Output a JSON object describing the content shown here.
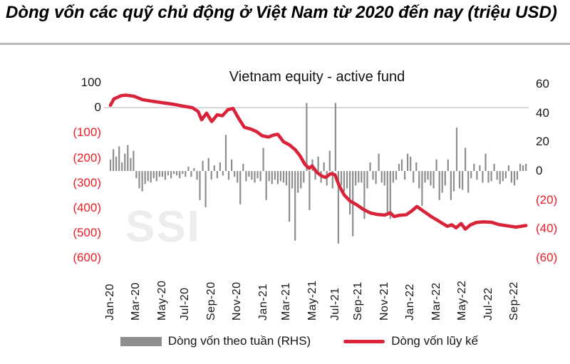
{
  "page": {
    "title": "Dòng vốn các quỹ chủ động ở Việt Nam từ 2020 đến nay (triệu USD)"
  },
  "chart": {
    "title": "Vietnam equity - active fund",
    "watermark": "SSI",
    "colors": {
      "bar": "#8e8e8e",
      "line": "#d92339",
      "negative_label": "#ee1c25",
      "positive_label": "#161616",
      "gridline": "#c6c6c6",
      "separator": "#b9b9b9"
    },
    "legend": [
      {
        "label": "Dòng vốn theo tuần (RHS)",
        "swatch": "bar"
      },
      {
        "label": "Dòng vốn lũy kế",
        "swatch": "line"
      }
    ]
  },
  "chart_data": {
    "type": "combo-bar-line",
    "title": "Vietnam equity - active fund",
    "legend_position": "bottom",
    "grid": "single horizontal gridline at left-axis zero",
    "x_axis": {
      "unit": "weeks since Jan-2020",
      "tick_labels": [
        "Jan-20",
        "Mar-20",
        "May-20",
        "Jul-20",
        "Sep-20",
        "Nov-20",
        "Jan-21",
        "Mar-21",
        "May-21",
        "Jul-21",
        "Sep-21",
        "Nov-21",
        "Jan-22",
        "Mar-22",
        "May-22",
        "Jul-22",
        "Sep-22"
      ],
      "tick_week_indices": [
        0,
        9,
        18,
        26,
        35,
        44,
        53,
        61,
        70,
        78,
        86,
        95,
        104,
        113,
        122,
        131,
        140
      ]
    },
    "left_axis": {
      "tick_labels": [
        "100",
        "0",
        "(100)",
        "(200)",
        "(300)",
        "(400)",
        "(500)",
        "(600)"
      ],
      "range": [
        -600,
        100
      ],
      "tick_step": 100,
      "series": "Dòng vốn lũy kế"
    },
    "right_axis": {
      "tick_labels": [
        "60",
        "40",
        "20",
        "0",
        "(20)",
        "(40)",
        "(60)"
      ],
      "range": [
        -60,
        60
      ],
      "tick_step": 20,
      "series": "Dòng vốn theo tuần (RHS)"
    },
    "series": [
      {
        "name": "Dòng vốn theo tuần (RHS)",
        "type": "bar",
        "axis": "right",
        "color": "#8e8e8e",
        "values": [
          8,
          15,
          10,
          17,
          6,
          12,
          18,
          9,
          14,
          -5,
          -12,
          -14,
          -9,
          -7,
          -8,
          -5,
          -7,
          -4,
          -4,
          -6,
          -3,
          -5,
          -2,
          -3,
          -5,
          -2,
          -4,
          3,
          -4,
          2,
          -6,
          -20,
          7,
          -25,
          9,
          -6,
          4,
          -5,
          6,
          -3,
          25,
          -6,
          8,
          -4,
          -8,
          -23,
          5,
          -7,
          -4,
          -6,
          -8,
          -5,
          -7,
          16,
          -20,
          -7,
          -9,
          -6,
          -9,
          -7,
          -8,
          -10,
          -35,
          -12,
          -48,
          -15,
          -12,
          -8,
          47,
          -27,
          8,
          -6,
          10,
          -8,
          6,
          -10,
          14,
          -12,
          47,
          -50,
          -10,
          -14,
          -12,
          -30,
          -45,
          -10,
          -8,
          -8,
          -33,
          -12,
          6,
          -6,
          -9,
          12,
          -8,
          -10,
          -30,
          -33,
          -8,
          -6,
          5,
          8,
          -6,
          12,
          10,
          -8,
          6,
          -12,
          -24,
          -8,
          -6,
          -10,
          -12,
          8,
          -20,
          -15,
          -10,
          8,
          -20,
          -14,
          30,
          -12,
          -13,
          16,
          -15,
          -5,
          5,
          -6,
          4,
          -8,
          12,
          -8,
          -7,
          5,
          -6,
          -9,
          -7,
          -5,
          4,
          -8,
          -10,
          -6,
          5,
          4,
          5
        ]
      },
      {
        "name": "Dòng vốn lũy kế",
        "type": "line",
        "axis": "left",
        "color": "#d92339",
        "points": [
          [
            0,
            10
          ],
          [
            1.2,
            35
          ],
          [
            3.7,
            48
          ],
          [
            5.4,
            50
          ],
          [
            8.1,
            46
          ],
          [
            11.1,
            32
          ],
          [
            14.3,
            26
          ],
          [
            18,
            20
          ],
          [
            21.7,
            14
          ],
          [
            25.4,
            6
          ],
          [
            28.4,
            0
          ],
          [
            30.4,
            -15
          ],
          [
            31.6,
            -48
          ],
          [
            33.3,
            -22
          ],
          [
            35.1,
            -55
          ],
          [
            37,
            -28
          ],
          [
            38.8,
            -32
          ],
          [
            40.7,
            -8
          ],
          [
            42.5,
            -3
          ],
          [
            44.4,
            -42
          ],
          [
            46.4,
            -78
          ],
          [
            48.6,
            -85
          ],
          [
            50.6,
            -95
          ],
          [
            52.6,
            -112
          ],
          [
            54.8,
            -117
          ],
          [
            56.5,
            -109
          ],
          [
            58,
            -106
          ],
          [
            60,
            -136
          ],
          [
            62,
            -148
          ],
          [
            64,
            -167
          ],
          [
            65.7,
            -192
          ],
          [
            67.4,
            -226
          ],
          [
            68.9,
            -242
          ],
          [
            69.9,
            -232
          ],
          [
            71.4,
            -256
          ],
          [
            73.1,
            -272
          ],
          [
            74.6,
            -278
          ],
          [
            76.3,
            -263
          ],
          [
            77.8,
            -267
          ],
          [
            79.3,
            -312
          ],
          [
            81,
            -348
          ],
          [
            83,
            -372
          ],
          [
            85.2,
            -386
          ],
          [
            87.7,
            -406
          ],
          [
            90.1,
            -420
          ],
          [
            92.8,
            -426
          ],
          [
            95.1,
            -428
          ],
          [
            97,
            -419
          ],
          [
            98.3,
            -434
          ],
          [
            100.2,
            -429
          ],
          [
            102.5,
            -427
          ],
          [
            104.4,
            -412
          ],
          [
            106.2,
            -394
          ],
          [
            108.9,
            -416
          ],
          [
            111.4,
            -436
          ],
          [
            113.3,
            -449
          ],
          [
            115.1,
            -462
          ],
          [
            116.8,
            -473
          ],
          [
            118.3,
            -467
          ],
          [
            119.8,
            -479
          ],
          [
            121.5,
            -462
          ],
          [
            123,
            -484
          ],
          [
            124.7,
            -468
          ],
          [
            126.7,
            -458
          ],
          [
            129.1,
            -455
          ],
          [
            132.1,
            -457
          ],
          [
            134.6,
            -466
          ],
          [
            137.5,
            -471
          ],
          [
            140.5,
            -476
          ],
          [
            144,
            -470
          ]
        ]
      }
    ]
  }
}
